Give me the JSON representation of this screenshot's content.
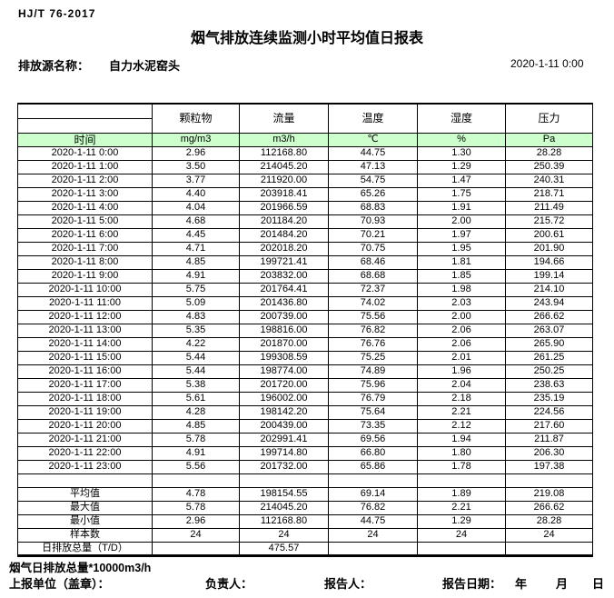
{
  "header": {
    "standard": "HJ/T  76-2017",
    "title": "烟气排放连续监测小时平均值日报表",
    "source_label": "排放源名称：",
    "source_name": "自力水泥窑头",
    "datetime": "2020-1-11  0:00"
  },
  "colors": {
    "header_row_green": "#ccffcc",
    "border": "#000000"
  },
  "table": {
    "time_label": "时间",
    "columns": [
      "颗粒物",
      "流量",
      "温度",
      "湿度",
      "压力"
    ],
    "units": [
      "mg/m3",
      "m3/h",
      "℃",
      "%",
      "Pa"
    ],
    "rows": [
      {
        "time": "2020-1-11 0:00",
        "values": [
          "2.96",
          "112168.80",
          "44.75",
          "1.30",
          "28.28"
        ]
      },
      {
        "time": "2020-1-11 1:00",
        "values": [
          "3.50",
          "214045.20",
          "47.13",
          "1.29",
          "250.39"
        ]
      },
      {
        "time": "2020-1-11 2:00",
        "values": [
          "3.77",
          "211920.00",
          "54.75",
          "1.47",
          "240.31"
        ]
      },
      {
        "time": "2020-1-11 3:00",
        "values": [
          "4.40",
          "203918.41",
          "65.26",
          "1.75",
          "218.71"
        ]
      },
      {
        "time": "2020-1-11 4:00",
        "values": [
          "4.04",
          "201966.59",
          "68.83",
          "1.91",
          "211.49"
        ]
      },
      {
        "time": "2020-1-11 5:00",
        "values": [
          "4.68",
          "201184.20",
          "70.93",
          "2.00",
          "215.72"
        ]
      },
      {
        "time": "2020-1-11 6:00",
        "values": [
          "4.45",
          "201484.20",
          "70.21",
          "1.97",
          "200.61"
        ]
      },
      {
        "time": "2020-1-11 7:00",
        "values": [
          "4.71",
          "202018.20",
          "70.75",
          "1.95",
          "201.90"
        ]
      },
      {
        "time": "2020-1-11 8:00",
        "values": [
          "4.85",
          "199721.41",
          "68.46",
          "1.81",
          "194.66"
        ]
      },
      {
        "time": "2020-1-11 9:00",
        "values": [
          "4.91",
          "203832.00",
          "68.68",
          "1.85",
          "199.14"
        ]
      },
      {
        "time": "2020-1-11 10:00",
        "values": [
          "5.75",
          "201764.41",
          "72.37",
          "1.98",
          "214.10"
        ]
      },
      {
        "time": "2020-1-11 11:00",
        "values": [
          "5.09",
          "201436.80",
          "74.02",
          "2.03",
          "243.94"
        ]
      },
      {
        "time": "2020-1-11 12:00",
        "values": [
          "4.83",
          "200739.00",
          "75.56",
          "2.00",
          "266.62"
        ]
      },
      {
        "time": "2020-1-11 13:00",
        "values": [
          "5.35",
          "198816.00",
          "76.82",
          "2.06",
          "263.07"
        ]
      },
      {
        "time": "2020-1-11 14:00",
        "values": [
          "4.22",
          "201870.00",
          "76.76",
          "2.06",
          "265.90"
        ]
      },
      {
        "time": "2020-1-11 15:00",
        "values": [
          "5.44",
          "199308.59",
          "75.25",
          "2.01",
          "261.25"
        ]
      },
      {
        "time": "2020-1-11 16:00",
        "values": [
          "5.44",
          "198774.00",
          "74.89",
          "1.96",
          "250.25"
        ]
      },
      {
        "time": "2020-1-11 17:00",
        "values": [
          "5.38",
          "201720.00",
          "75.96",
          "2.04",
          "238.63"
        ]
      },
      {
        "time": "2020-1-11 18:00",
        "values": [
          "5.61",
          "196002.00",
          "76.79",
          "2.18",
          "235.19"
        ]
      },
      {
        "time": "2020-1-11 19:00",
        "values": [
          "4.28",
          "198142.20",
          "75.64",
          "2.21",
          "224.56"
        ]
      },
      {
        "time": "2020-1-11 20:00",
        "values": [
          "4.85",
          "200439.00",
          "73.35",
          "2.12",
          "217.60"
        ]
      },
      {
        "time": "2020-1-11 21:00",
        "values": [
          "5.78",
          "202991.41",
          "69.56",
          "1.94",
          "211.87"
        ]
      },
      {
        "time": "2020-1-11 22:00",
        "values": [
          "4.91",
          "199714.80",
          "66.80",
          "1.80",
          "206.30"
        ]
      },
      {
        "time": "2020-1-11 23:00",
        "values": [
          "5.56",
          "201732.00",
          "65.86",
          "1.78",
          "197.38"
        ]
      }
    ],
    "summary": [
      {
        "label": "平均值",
        "values": [
          "4.78",
          "198154.55",
          "69.14",
          "1.89",
          "219.08"
        ]
      },
      {
        "label": "最大值",
        "values": [
          "5.78",
          "214045.20",
          "76.82",
          "2.21",
          "266.62"
        ]
      },
      {
        "label": "最小值",
        "values": [
          "2.96",
          "112168.80",
          "44.75",
          "1.29",
          "28.28"
        ]
      },
      {
        "label": "样本数",
        "values": [
          "24",
          "24",
          "24",
          "24",
          "24"
        ]
      },
      {
        "label": "日排放总量（T/D）",
        "values": [
          "",
          "475.57",
          "",
          "",
          ""
        ]
      }
    ]
  },
  "footer": {
    "note": "烟气日排放总量*10000m3/h",
    "unit_label": "上报单位（盖章）：",
    "manager_label": "负责人：",
    "reporter_label": "报告人：",
    "date_label": "报告日期：",
    "year": "年",
    "month": "月",
    "day": "日"
  }
}
